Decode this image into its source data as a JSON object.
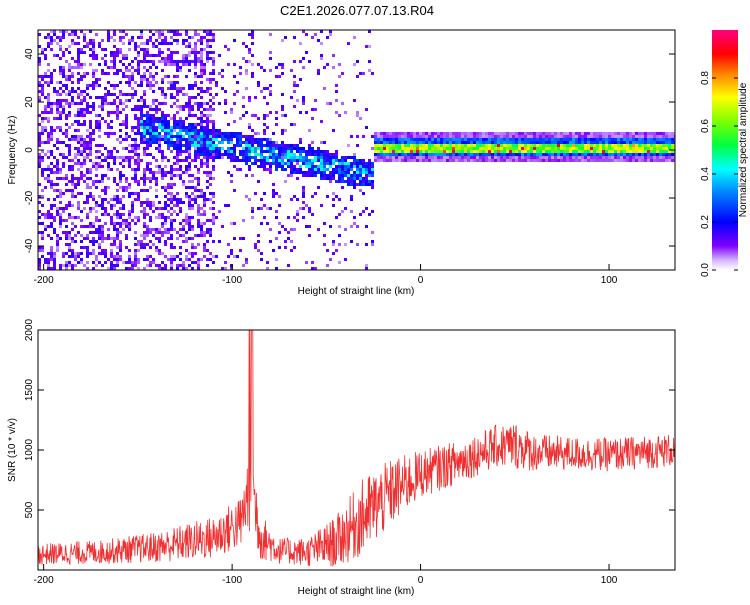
{
  "title": "C2E1.2026.077.07.13.R04",
  "chart_data": [
    {
      "type": "heatmap",
      "xlabel": "Height of straight line (km)",
      "ylabel": "Frequency (Hz)",
      "xlim": [
        -203,
        135
      ],
      "ylim": [
        -50,
        50
      ],
      "xticks": [
        -200,
        -100,
        0,
        100
      ],
      "yticks": [
        -40,
        -20,
        0,
        20,
        40
      ],
      "colorbar": {
        "label": "Normalized spectral amplitude",
        "range": [
          0,
          1
        ],
        "ticks": [
          "0.0",
          "0.2",
          "0.4",
          "0.6",
          "0.8"
        ]
      },
      "features": {
        "noise_region_x": [
          -203,
          -25
        ],
        "tone_region_x": [
          -25,
          135
        ],
        "tone_frequency_hz": 1.5,
        "tone_bandwidth_hz": 4,
        "descending_band": {
          "x": [
            -150,
            -25
          ],
          "freq": [
            10,
            -10
          ]
        }
      },
      "colors": {
        "low": "#8000ff",
        "mid": "#00ffff",
        "high": "#ff0000"
      }
    },
    {
      "type": "line",
      "xlabel": "Height of straight line (km)",
      "ylabel": "SNR (10 * v/v)",
      "xlim": [
        -203,
        135
      ],
      "ylim": [
        0,
        2000
      ],
      "xticks": [
        -200,
        -100,
        0,
        100
      ],
      "yticks": [
        500,
        1000,
        1500,
        2000
      ],
      "line_color": "#f03030",
      "envelope": {
        "x": [
          -203,
          -170,
          -140,
          -110,
          -95,
          -90,
          -85,
          -75,
          -60,
          -45,
          -30,
          -15,
          0,
          20,
          40,
          50,
          60,
          80,
          100,
          135
        ],
        "y": [
          130,
          150,
          190,
          270,
          400,
          750,
          280,
          160,
          150,
          230,
          450,
          650,
          800,
          900,
          1030,
          1040,
          980,
          970,
          960,
          1000
        ],
        "amp": [
          90,
          100,
          130,
          180,
          220,
          420,
          200,
          110,
          120,
          220,
          330,
          280,
          200,
          180,
          180,
          200,
          160,
          140,
          140,
          140
        ]
      }
    }
  ]
}
